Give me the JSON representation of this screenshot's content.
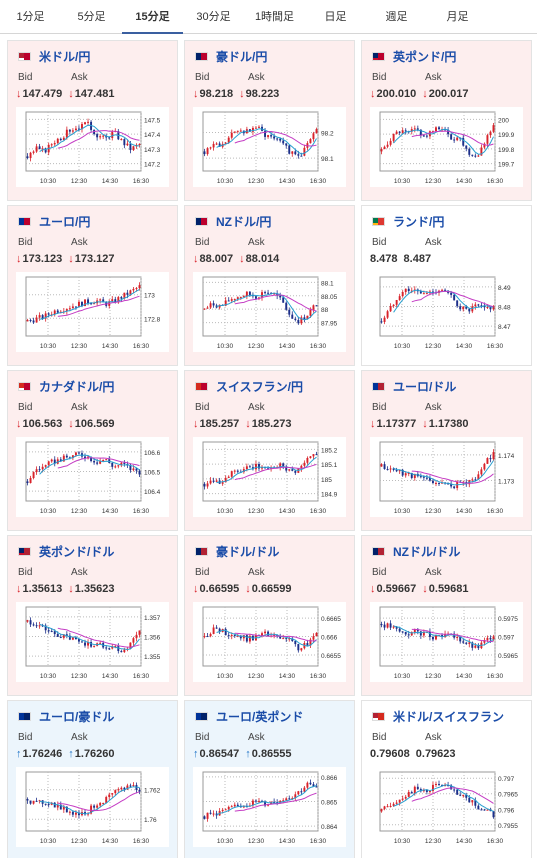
{
  "tabs": [
    {
      "label": "1分足",
      "active": false
    },
    {
      "label": "5分足",
      "active": false
    },
    {
      "label": "15分足",
      "active": true
    },
    {
      "label": "30分足",
      "active": false
    },
    {
      "label": "1時間足",
      "active": false
    },
    {
      "label": "日足",
      "active": false
    },
    {
      "label": "週足",
      "active": false
    },
    {
      "label": "月足",
      "active": false
    }
  ],
  "labels": {
    "bid": "Bid",
    "ask": "Ask"
  },
  "colors": {
    "up_candle": "#d8222a",
    "down_candle": "#1c2f8a",
    "ma_short": "#28a0d0",
    "ma_long": "#c43cc4",
    "pair_text": "#1a4ca8",
    "arrow_down": "#d8222a",
    "arrow_up": "#1e73c8"
  },
  "cards": [
    {
      "pair": "米ドル/円",
      "flag": [
        "#b22234",
        "#ffffff",
        "#bc002d"
      ],
      "trend": "down",
      "bid": "147.479",
      "ask": "147.481",
      "x_ticks": [
        "10:30",
        "12:30",
        "14:30",
        "16:30"
      ],
      "y_ticks": [
        "147.5",
        "147.4",
        "147.3",
        "147.2"
      ],
      "ylim": [
        147.15,
        147.55
      ],
      "shape": [
        0.2,
        0.35,
        0.3,
        0.5,
        0.6,
        0.75,
        0.8,
        0.85,
        0.65,
        0.55,
        0.7,
        0.5,
        0.35,
        0.45
      ]
    },
    {
      "pair": "豪ドル/円",
      "flag": [
        "#012169",
        "#012169",
        "#bc002d"
      ],
      "trend": "down",
      "bid": "98.218",
      "ask": "98.223",
      "x_ticks": [
        "10:30",
        "12:30",
        "14:30",
        "16:30"
      ],
      "y_ticks": [
        "98.2",
        "98.1"
      ],
      "ylim": [
        98.05,
        98.28
      ],
      "shape": [
        0.3,
        0.45,
        0.4,
        0.6,
        0.75,
        0.7,
        0.8,
        0.65,
        0.6,
        0.55,
        0.25,
        0.2,
        0.45,
        0.7
      ]
    },
    {
      "pair": "英ポンド/円",
      "flag": [
        "#012169",
        "#c8102e",
        "#bc002d"
      ],
      "trend": "down",
      "bid": "200.010",
      "ask": "200.017",
      "x_ticks": [
        "10:30",
        "12:30",
        "14:30",
        "16:30"
      ],
      "y_ticks": [
        "200",
        "199.9",
        "199.8",
        "199.7"
      ],
      "ylim": [
        199.65,
        200.05
      ],
      "shape": [
        0.3,
        0.55,
        0.7,
        0.65,
        0.75,
        0.6,
        0.7,
        0.8,
        0.55,
        0.6,
        0.3,
        0.2,
        0.5,
        0.85
      ]
    },
    {
      "pair": "ユーロ/円",
      "flag": [
        "#003399",
        "#003399",
        "#bc002d"
      ],
      "trend": "down",
      "bid": "173.123",
      "ask": "173.127",
      "x_ticks": [
        "10:30",
        "12:30",
        "14:30",
        "16:30"
      ],
      "y_ticks": [
        "173",
        "172.8"
      ],
      "ylim": [
        172.65,
        173.15
      ],
      "shape": [
        0.2,
        0.25,
        0.3,
        0.4,
        0.45,
        0.5,
        0.55,
        0.6,
        0.62,
        0.55,
        0.6,
        0.7,
        0.8,
        0.9
      ]
    },
    {
      "pair": "NZドル/円",
      "flag": [
        "#012169",
        "#012169",
        "#bc002d"
      ],
      "trend": "down",
      "bid": "88.007",
      "ask": "88.014",
      "x_ticks": [
        "10:30",
        "12:30",
        "14:30",
        "16:30"
      ],
      "y_ticks": [
        "88.1",
        "88.05",
        "88",
        "87.95"
      ],
      "ylim": [
        87.9,
        88.12
      ],
      "shape": [
        0.45,
        0.55,
        0.5,
        0.65,
        0.7,
        0.75,
        0.7,
        0.8,
        0.75,
        0.6,
        0.3,
        0.2,
        0.35,
        0.55
      ]
    },
    {
      "pair": "ランド/円",
      "flag": [
        "#007a4d",
        "#ffb612",
        "#de3831"
      ],
      "trend": "flat",
      "bid": "8.478",
      "ask": "8.487",
      "x_ticks": [
        "10:30",
        "12:30",
        "14:30",
        "16:30"
      ],
      "y_ticks": [
        "8.49",
        "8.48",
        "8.47"
      ],
      "ylim": [
        8.465,
        8.495
      ],
      "shape": [
        0.2,
        0.45,
        0.75,
        0.85,
        0.8,
        0.75,
        0.8,
        0.85,
        0.7,
        0.5,
        0.4,
        0.5,
        0.45,
        0.5
      ]
    },
    {
      "pair": "カナダドル/円",
      "flag": [
        "#d52b1e",
        "#ffffff",
        "#bc002d"
      ],
      "trend": "down",
      "bid": "106.563",
      "ask": "106.569",
      "x_ticks": [
        "10:30",
        "12:30",
        "14:30",
        "16:30"
      ],
      "y_ticks": [
        "106.6",
        "106.5",
        "106.4"
      ],
      "ylim": [
        106.35,
        106.65
      ],
      "shape": [
        0.3,
        0.55,
        0.6,
        0.7,
        0.75,
        0.8,
        0.85,
        0.8,
        0.7,
        0.75,
        0.6,
        0.65,
        0.55,
        0.5
      ]
    },
    {
      "pair": "スイスフラン/円",
      "flag": [
        "#d52b1e",
        "#d52b1e",
        "#bc002d"
      ],
      "trend": "down",
      "bid": "185.257",
      "ask": "185.273",
      "x_ticks": [
        "10:30",
        "12:30",
        "14:30",
        "16:30"
      ],
      "y_ticks": [
        "185.2",
        "185.1",
        "185",
        "184.9"
      ],
      "ylim": [
        184.85,
        185.25
      ],
      "shape": [
        0.25,
        0.35,
        0.3,
        0.45,
        0.5,
        0.55,
        0.6,
        0.55,
        0.6,
        0.65,
        0.5,
        0.55,
        0.75,
        0.85
      ]
    },
    {
      "pair": "ユーロ/ドル",
      "flag": [
        "#003399",
        "#003399",
        "#b22234"
      ],
      "trend": "down",
      "bid": "1.17377",
      "ask": "1.17380",
      "x_ticks": [
        "10:30",
        "12:30",
        "14:30",
        "16:30"
      ],
      "y_ticks": [
        "1.174",
        "1.173"
      ],
      "ylim": [
        1.1722,
        1.1745
      ],
      "shape": [
        0.6,
        0.55,
        0.5,
        0.45,
        0.4,
        0.35,
        0.3,
        0.25,
        0.2,
        0.25,
        0.3,
        0.35,
        0.7,
        0.85
      ]
    },
    {
      "pair": "英ポンド/ドル",
      "flag": [
        "#012169",
        "#c8102e",
        "#b22234"
      ],
      "trend": "down",
      "bid": "1.35613",
      "ask": "1.35623",
      "x_ticks": [
        "10:30",
        "12:30",
        "14:30",
        "16:30"
      ],
      "y_ticks": [
        "1.357",
        "1.356",
        "1.355"
      ],
      "ylim": [
        1.3545,
        1.3575
      ],
      "shape": [
        0.8,
        0.75,
        0.65,
        0.55,
        0.5,
        0.45,
        0.4,
        0.35,
        0.35,
        0.3,
        0.3,
        0.2,
        0.35,
        0.65
      ]
    },
    {
      "pair": "豪ドル/ドル",
      "flag": [
        "#012169",
        "#012169",
        "#b22234"
      ],
      "trend": "down",
      "bid": "0.66595",
      "ask": "0.66599",
      "x_ticks": [
        "10:30",
        "12:30",
        "14:30",
        "16:30"
      ],
      "y_ticks": [
        "0.6665",
        "0.666",
        "0.6655"
      ],
      "ylim": [
        0.6652,
        0.6668
      ],
      "shape": [
        0.5,
        0.65,
        0.6,
        0.55,
        0.5,
        0.45,
        0.5,
        0.55,
        0.5,
        0.45,
        0.4,
        0.25,
        0.35,
        0.55
      ]
    },
    {
      "pair": "NZドル/ドル",
      "flag": [
        "#012169",
        "#012169",
        "#b22234"
      ],
      "trend": "down",
      "bid": "0.59667",
      "ask": "0.59681",
      "x_ticks": [
        "10:30",
        "12:30",
        "14:30",
        "16:30"
      ],
      "y_ticks": [
        "0.5975",
        "0.597",
        "0.5965"
      ],
      "ylim": [
        0.5962,
        0.5978
      ],
      "shape": [
        0.75,
        0.7,
        0.6,
        0.55,
        0.6,
        0.55,
        0.5,
        0.55,
        0.5,
        0.45,
        0.35,
        0.25,
        0.4,
        0.55
      ]
    },
    {
      "pair": "ユーロ/豪ドル",
      "flag": [
        "#003399",
        "#003399",
        "#012169"
      ],
      "trend": "up",
      "bid": "1.76246",
      "ask": "1.76260",
      "x_ticks": [
        "10:30",
        "12:30",
        "14:30",
        "16:30"
      ],
      "y_ticks": [
        "1.762",
        "1.76"
      ],
      "ylim": [
        1.7592,
        1.7632
      ],
      "shape": [
        0.55,
        0.45,
        0.5,
        0.45,
        0.35,
        0.3,
        0.25,
        0.3,
        0.45,
        0.55,
        0.65,
        0.75,
        0.85,
        0.7
      ]
    },
    {
      "pair": "ユーロ/英ポンド",
      "flag": [
        "#003399",
        "#003399",
        "#012169"
      ],
      "trend": "up",
      "bid": "0.86547",
      "ask": "0.86555",
      "x_ticks": [
        "10:30",
        "12:30",
        "14:30",
        "16:30"
      ],
      "y_ticks": [
        "0.866",
        "0.865",
        "0.864"
      ],
      "ylim": [
        0.8638,
        0.8662
      ],
      "shape": [
        0.2,
        0.25,
        0.3,
        0.35,
        0.4,
        0.45,
        0.5,
        0.45,
        0.5,
        0.55,
        0.6,
        0.7,
        0.85,
        0.75
      ]
    },
    {
      "pair": "米ドル/スイスフラン",
      "flag": [
        "#b22234",
        "#ffffff",
        "#d52b1e"
      ],
      "trend": "flat",
      "bid": "0.79608",
      "ask": "0.79623",
      "x_ticks": [
        "10:30",
        "12:30",
        "14:30",
        "16:30"
      ],
      "y_ticks": [
        "0.797",
        "0.7965",
        "0.796",
        "0.7955"
      ],
      "ylim": [
        0.7953,
        0.7972
      ],
      "shape": [
        0.3,
        0.45,
        0.55,
        0.65,
        0.75,
        0.7,
        0.8,
        0.85,
        0.75,
        0.6,
        0.55,
        0.4,
        0.35,
        0.2
      ]
    }
  ]
}
